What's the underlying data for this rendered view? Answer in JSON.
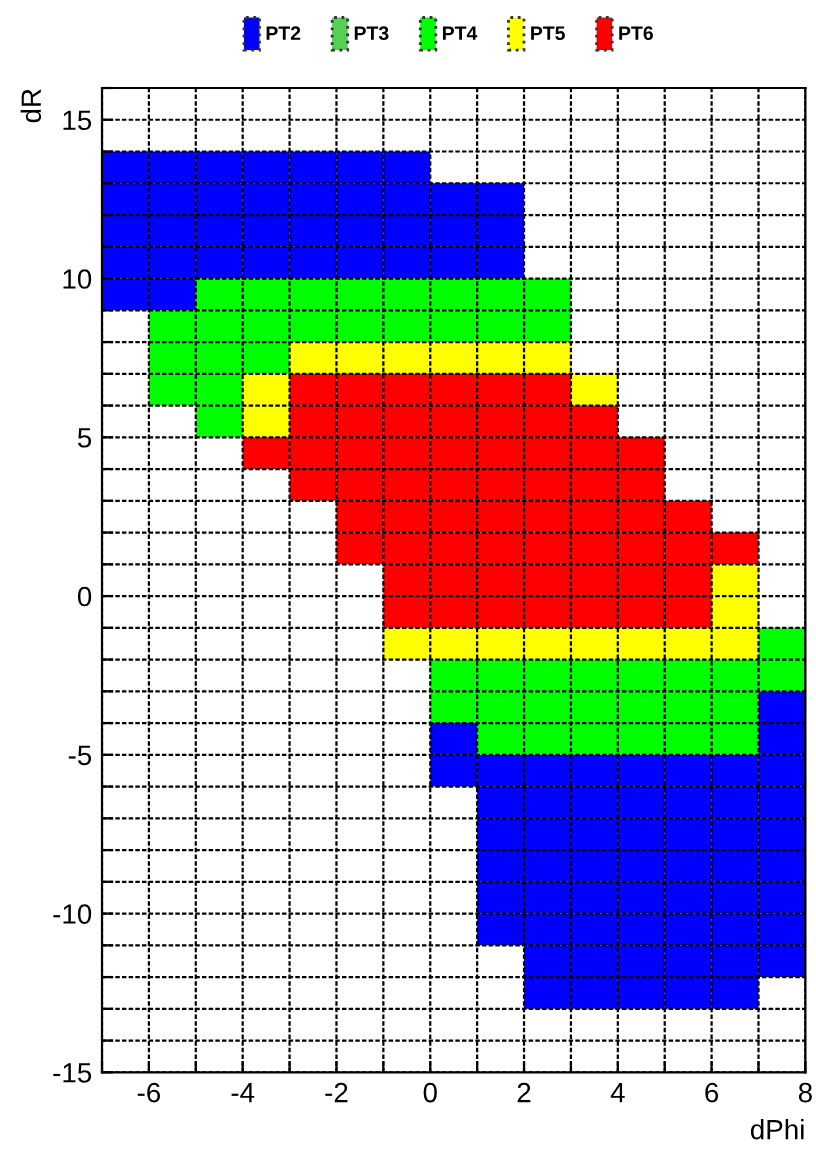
{
  "chart_data": {
    "type": "scatter",
    "marker": "square",
    "xlabel": "dPhi",
    "ylabel": "dR",
    "xlim": [
      -7,
      8
    ],
    "ylim": [
      -15,
      16
    ],
    "xticks": [
      {
        "value": -7,
        "label": null
      },
      -6,
      {
        "value": -5,
        "label": null
      },
      -4,
      {
        "value": -3,
        "label": null
      },
      -2,
      {
        "value": -1,
        "label": null
      },
      0,
      {
        "value": 1,
        "label": null
      },
      2,
      {
        "value": 3,
        "label": null
      },
      4,
      {
        "value": 5,
        "label": null
      },
      6,
      {
        "value": 7,
        "label": null
      },
      8
    ],
    "yticks": [
      -15,
      {
        "value": -14,
        "label": null
      },
      {
        "value": -13,
        "label": null
      },
      {
        "value": -12,
        "label": null
      },
      {
        "value": -11,
        "label": null
      },
      -10,
      {
        "value": -9,
        "label": null
      },
      {
        "value": -8,
        "label": null
      },
      {
        "value": -7,
        "label": null
      },
      {
        "value": -6,
        "label": null
      },
      -5,
      {
        "value": -4,
        "label": null
      },
      {
        "value": -3,
        "label": null
      },
      {
        "value": -2,
        "label": null
      },
      {
        "value": -1,
        "label": null
      },
      0,
      {
        "value": 1,
        "label": null
      },
      {
        "value": 2,
        "label": null
      },
      {
        "value": 3,
        "label": null
      },
      {
        "value": 4,
        "label": null
      },
      5,
      {
        "value": 6,
        "label": null
      },
      {
        "value": 7,
        "label": null
      },
      {
        "value": 8,
        "label": null
      },
      {
        "value": 9,
        "label": null
      },
      10,
      {
        "value": 11,
        "label": null
      },
      {
        "value": 12,
        "label": null
      },
      {
        "value": 13,
        "label": null
      },
      {
        "value": 14,
        "label": null
      },
      15,
      {
        "value": 16,
        "label": null
      }
    ],
    "grid": true,
    "legend": "top",
    "series": [
      {
        "name": "PT2",
        "color": "#0000ff",
        "x": [
          -6.5,
          -5.5,
          -4.5,
          -3.5,
          -2.5,
          -1.5,
          -0.5,
          -6.5,
          -5.5,
          -4.5,
          -3.5,
          -2.5,
          -1.5,
          -0.5,
          0.5,
          1.5,
          -6.5,
          -5.5,
          -4.5,
          -3.5,
          -2.5,
          -1.5,
          -0.5,
          0.5,
          1.5,
          -6.5,
          -5.5,
          -4.5,
          -3.5,
          -2.5,
          -1.5,
          -0.5,
          0.5,
          1.5,
          -6.5,
          -5.5,
          7.5,
          0.5,
          7.5,
          0.5,
          1.5,
          2.5,
          3.5,
          4.5,
          5.5,
          6.5,
          7.5,
          1.5,
          2.5,
          3.5,
          4.5,
          5.5,
          6.5,
          7.5,
          1.5,
          2.5,
          3.5,
          4.5,
          5.5,
          6.5,
          7.5,
          1.5,
          2.5,
          3.5,
          4.5,
          5.5,
          6.5,
          7.5,
          1.5,
          2.5,
          3.5,
          4.5,
          5.5,
          6.5,
          7.5,
          1.5,
          2.5,
          3.5,
          4.5,
          5.5,
          6.5,
          7.5,
          2.5,
          3.5,
          4.5,
          5.5,
          6.5,
          7.5,
          2.5,
          3.5,
          4.5,
          5.5,
          6.5
        ],
        "values": [
          13.5,
          13.5,
          13.5,
          13.5,
          13.5,
          13.5,
          13.5,
          12.5,
          12.5,
          12.5,
          12.5,
          12.5,
          12.5,
          12.5,
          12.5,
          12.5,
          11.5,
          11.5,
          11.5,
          11.5,
          11.5,
          11.5,
          11.5,
          11.5,
          11.5,
          10.5,
          10.5,
          10.5,
          10.5,
          10.5,
          10.5,
          10.5,
          10.5,
          10.5,
          9.5,
          9.5,
          -3.5,
          -4.5,
          -4.5,
          -5.5,
          -5.5,
          -5.5,
          -5.5,
          -5.5,
          -5.5,
          -5.5,
          -5.5,
          -6.5,
          -6.5,
          -6.5,
          -6.5,
          -6.5,
          -6.5,
          -6.5,
          -7.5,
          -7.5,
          -7.5,
          -7.5,
          -7.5,
          -7.5,
          -7.5,
          -8.5,
          -8.5,
          -8.5,
          -8.5,
          -8.5,
          -8.5,
          -8.5,
          -9.5,
          -9.5,
          -9.5,
          -9.5,
          -9.5,
          -9.5,
          -9.5,
          -10.5,
          -10.5,
          -10.5,
          -10.5,
          -10.5,
          -10.5,
          -10.5,
          -11.5,
          -11.5,
          -11.5,
          -11.5,
          -11.5,
          -11.5,
          -12.5,
          -12.5,
          -12.5,
          -12.5,
          -12.5
        ]
      },
      {
        "name": "PT3",
        "color": "#55d055"
      },
      {
        "name": "PT4",
        "color": "#00ff00",
        "x": [
          -4.5,
          -3.5,
          -2.5,
          -1.5,
          -0.5,
          0.5,
          1.5,
          2.5,
          -5.5,
          -4.5,
          -3.5,
          -2.5,
          -1.5,
          -0.5,
          0.5,
          1.5,
          2.5,
          -5.5,
          -4.5,
          -3.5,
          -5.5,
          -4.5,
          -4.5,
          7.5,
          0.5,
          1.5,
          2.5,
          3.5,
          4.5,
          5.5,
          6.5,
          7.5,
          0.5,
          1.5,
          2.5,
          3.5,
          4.5,
          5.5,
          6.5,
          1.5,
          2.5,
          3.5,
          4.5,
          5.5,
          6.5
        ],
        "values": [
          9.5,
          9.5,
          9.5,
          9.5,
          9.5,
          9.5,
          9.5,
          9.5,
          8.5,
          8.5,
          8.5,
          8.5,
          8.5,
          8.5,
          8.5,
          8.5,
          8.5,
          7.5,
          7.5,
          7.5,
          6.5,
          6.5,
          5.5,
          -1.5,
          -2.5,
          -2.5,
          -2.5,
          -2.5,
          -2.5,
          -2.5,
          -2.5,
          -2.5,
          -3.5,
          -3.5,
          -3.5,
          -3.5,
          -3.5,
          -3.5,
          -3.5,
          -4.5,
          -4.5,
          -4.5,
          -4.5,
          -4.5,
          -4.5
        ]
      },
      {
        "name": "PT5",
        "color": "#ffff00",
        "x": [
          -2.5,
          -1.5,
          -0.5,
          0.5,
          1.5,
          2.5,
          -3.5,
          3.5,
          -3.5,
          6.5,
          6.5,
          -0.5,
          0.5,
          1.5,
          2.5,
          3.5,
          4.5,
          5.5,
          6.5
        ],
        "values": [
          7.5,
          7.5,
          7.5,
          7.5,
          7.5,
          7.5,
          6.5,
          6.5,
          5.5,
          0.5,
          -0.5,
          -1.5,
          -1.5,
          -1.5,
          -1.5,
          -1.5,
          -1.5,
          -1.5,
          -1.5
        ]
      },
      {
        "name": "PT6",
        "color": "#ff0000",
        "x": [
          -2.5,
          -1.5,
          -0.5,
          0.5,
          1.5,
          2.5,
          -2.5,
          -1.5,
          -0.5,
          0.5,
          1.5,
          2.5,
          3.5,
          -3.5,
          -2.5,
          -1.5,
          -0.5,
          0.5,
          1.5,
          2.5,
          3.5,
          4.5,
          -2.5,
          -1.5,
          -0.5,
          0.5,
          1.5,
          2.5,
          3.5,
          4.5,
          -1.5,
          -0.5,
          0.5,
          1.5,
          2.5,
          3.5,
          4.5,
          5.5,
          -1.5,
          -0.5,
          0.5,
          1.5,
          2.5,
          3.5,
          4.5,
          5.5,
          6.5,
          -0.5,
          0.5,
          1.5,
          2.5,
          3.5,
          4.5,
          5.5,
          -0.5,
          0.5,
          1.5,
          2.5,
          3.5,
          4.5,
          5.5
        ],
        "values": [
          6.5,
          6.5,
          6.5,
          6.5,
          6.5,
          6.5,
          5.5,
          5.5,
          5.5,
          5.5,
          5.5,
          5.5,
          5.5,
          4.5,
          4.5,
          4.5,
          4.5,
          4.5,
          4.5,
          4.5,
          4.5,
          4.5,
          3.5,
          3.5,
          3.5,
          3.5,
          3.5,
          3.5,
          3.5,
          3.5,
          2.5,
          2.5,
          2.5,
          2.5,
          2.5,
          2.5,
          2.5,
          2.5,
          1.5,
          1.5,
          1.5,
          1.5,
          1.5,
          1.5,
          1.5,
          1.5,
          1.5,
          0.5,
          0.5,
          0.5,
          0.5,
          0.5,
          0.5,
          0.5,
          -0.5,
          -0.5,
          -0.5,
          -0.5,
          -0.5,
          -0.5,
          -0.5
        ]
      }
    ]
  }
}
